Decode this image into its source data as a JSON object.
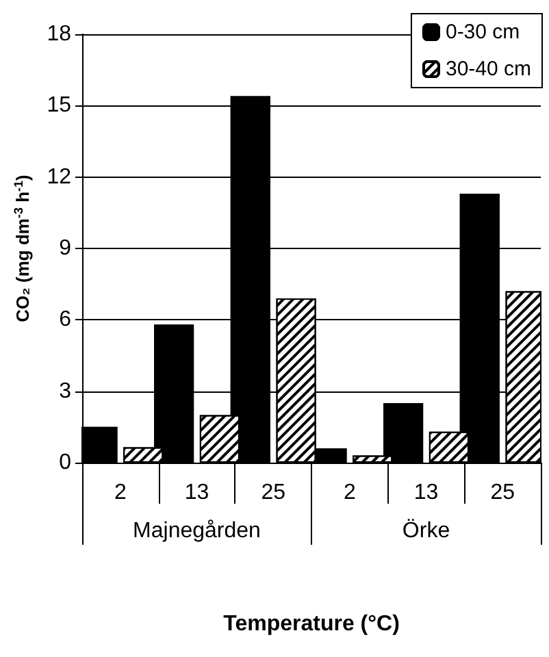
{
  "chart_data": {
    "type": "bar",
    "xlabel": "Temperature (°C)",
    "ylabel": "CO₂ (mg dm$^{-3}$ h$^{-1}$)",
    "categories": [
      "2",
      "13",
      "25",
      "2",
      "13",
      "25"
    ],
    "annotations": [
      "Majnegården",
      "Örke"
    ],
    "series": [
      {
        "name": "0-30 cm",
        "color": "#000000",
        "values": [
          1.5,
          5.8,
          15.4,
          0.6,
          2.5,
          11.3
        ]
      },
      {
        "name": "30-40 cm",
        "color": "#ffffff",
        "values": [
          0.65,
          2.0,
          6.9,
          0.3,
          1.3,
          7.2
        ]
      }
    ],
    "ylim": [
      0,
      18
    ],
    "yticks": [
      0,
      3,
      6,
      9,
      12,
      15,
      18
    ],
    "grid": "y",
    "legend": "top right"
  }
}
